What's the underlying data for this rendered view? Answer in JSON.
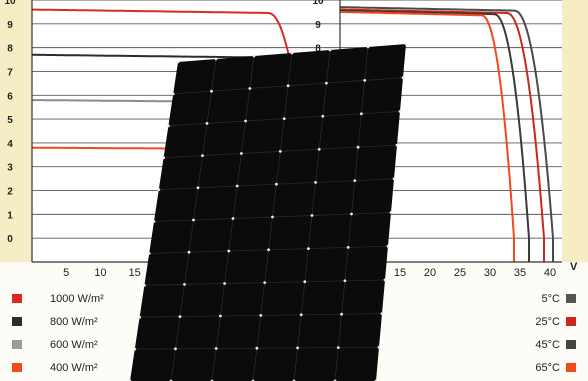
{
  "chart_data": [
    {
      "type": "line",
      "title": "",
      "xlabel": "",
      "ylabel": "",
      "x_ticks": [
        "5",
        "10",
        "15",
        "20",
        "25",
        "30",
        "35",
        "40"
      ],
      "y_ticks": [
        "0",
        "1",
        "2",
        "3",
        "4",
        "5",
        "6",
        "7",
        "8",
        "9",
        "10"
      ],
      "xlim": [
        0,
        45
      ],
      "ylim": [
        -1,
        10
      ],
      "series": [
        {
          "name": "1000 W/m²",
          "color": "#d62a22",
          "isc": 9.6,
          "voc": 41
        },
        {
          "name": "800 W/m²",
          "color": "#2c2c2c",
          "isc": 7.7,
          "voc": 40.5
        },
        {
          "name": "600 W/m²",
          "color": "#8c8c8c",
          "isc": 5.8,
          "voc": 40
        },
        {
          "name": "400 W/m²",
          "color": "#f04a1e",
          "isc": 3.8,
          "voc": 39
        }
      ]
    },
    {
      "type": "line",
      "title": "",
      "xlabel": "V",
      "ylabel": "",
      "x_ticks": [
        "10",
        "15",
        "20",
        "25",
        "30",
        "35",
        "40"
      ],
      "y_ticks": [
        "0",
        "1",
        "2",
        "3",
        "4",
        "5",
        "6",
        "7",
        "8",
        "9",
        "10"
      ],
      "xlim": [
        5,
        42
      ],
      "ylim": [
        -1,
        10
      ],
      "series": [
        {
          "name": "5°C",
          "color": "#4a4a4a",
          "isc": 9.7,
          "voc": 40.5
        },
        {
          "name": "25°C",
          "color": "#c8281e",
          "isc": 9.6,
          "voc": 39
        },
        {
          "name": "45°C",
          "color": "#3a3a3a",
          "isc": 9.55,
          "voc": 36.5
        },
        {
          "name": "65°C",
          "color": "#f04a1e",
          "isc": 9.5,
          "voc": 34
        }
      ]
    }
  ],
  "legend_left": [
    {
      "label": "1000 W/m²",
      "color": "#d62a22"
    },
    {
      "label": "800 W/m²",
      "color": "#2c2c2c"
    },
    {
      "label": "600 W/m²",
      "color": "#9a9a9a"
    },
    {
      "label": "400 W/m²",
      "color": "#f04a1e"
    }
  ],
  "legend_right": [
    {
      "label": "5°C",
      "color": "#555555"
    },
    {
      "label": "25°C",
      "color": "#c8281e"
    },
    {
      "label": "45°C",
      "color": "#444444"
    },
    {
      "label": "65°C",
      "color": "#f04a1e"
    }
  ],
  "colors": {
    "background_band": "#f6edc4",
    "panel": "#0b0b0b",
    "grid": "#5a5a5a"
  }
}
